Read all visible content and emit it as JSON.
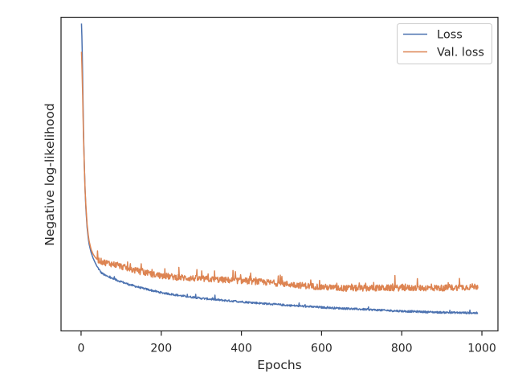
{
  "chart_data": {
    "type": "line",
    "title": "",
    "xlabel": "Epochs",
    "ylabel": "Negative log-likelihood",
    "xlim": [
      -50,
      1040
    ],
    "ylim": [
      0,
      1
    ],
    "x_ticks": [
      0,
      200,
      400,
      600,
      800,
      1000
    ],
    "x_tick_labels": [
      "0",
      "200",
      "400",
      "600",
      "800",
      "1000"
    ],
    "y_tick_labels_visible": false,
    "grid": false,
    "legend_position": "top-right",
    "series": [
      {
        "name": "Loss",
        "color": "#4c72b0",
        "x": [
          1,
          2,
          3,
          4,
          5,
          6,
          8,
          10,
          12,
          15,
          18,
          20,
          25,
          30,
          35,
          40,
          50,
          60,
          80,
          100,
          120,
          150,
          180,
          200,
          250,
          300,
          350,
          400,
          450,
          500,
          550,
          600,
          650,
          700,
          750,
          800,
          850,
          900,
          950,
          990
        ],
        "y": [
          0.98,
          0.94,
          0.88,
          0.8,
          0.72,
          0.64,
          0.53,
          0.45,
          0.39,
          0.33,
          0.295,
          0.277,
          0.25,
          0.232,
          0.218,
          0.205,
          0.186,
          0.177,
          0.166,
          0.157,
          0.148,
          0.137,
          0.128,
          0.122,
          0.112,
          0.104,
          0.098,
          0.093,
          0.088,
          0.083,
          0.079,
          0.075,
          0.072,
          0.069,
          0.066,
          0.063,
          0.061,
          0.059,
          0.058,
          0.057
        ],
        "noise": 0.003
      },
      {
        "name": "Val. loss",
        "color": "#dd8452",
        "x": [
          1,
          2,
          3,
          4,
          5,
          6,
          8,
          10,
          12,
          15,
          18,
          20,
          25,
          30,
          35,
          40,
          50,
          60,
          80,
          100,
          120,
          150,
          180,
          200,
          250,
          300,
          350,
          400,
          450,
          500,
          550,
          600,
          650,
          700,
          750,
          800,
          850,
          900,
          950,
          990
        ],
        "y": [
          0.89,
          0.85,
          0.8,
          0.75,
          0.68,
          0.62,
          0.53,
          0.45,
          0.4,
          0.34,
          0.305,
          0.287,
          0.26,
          0.245,
          0.235,
          0.228,
          0.222,
          0.218,
          0.213,
          0.206,
          0.198,
          0.188,
          0.18,
          0.176,
          0.17,
          0.166,
          0.163,
          0.16,
          0.156,
          0.151,
          0.145,
          0.14,
          0.136,
          0.136,
          0.137,
          0.137,
          0.137,
          0.137,
          0.139,
          0.142
        ],
        "noise": 0.01
      }
    ]
  }
}
